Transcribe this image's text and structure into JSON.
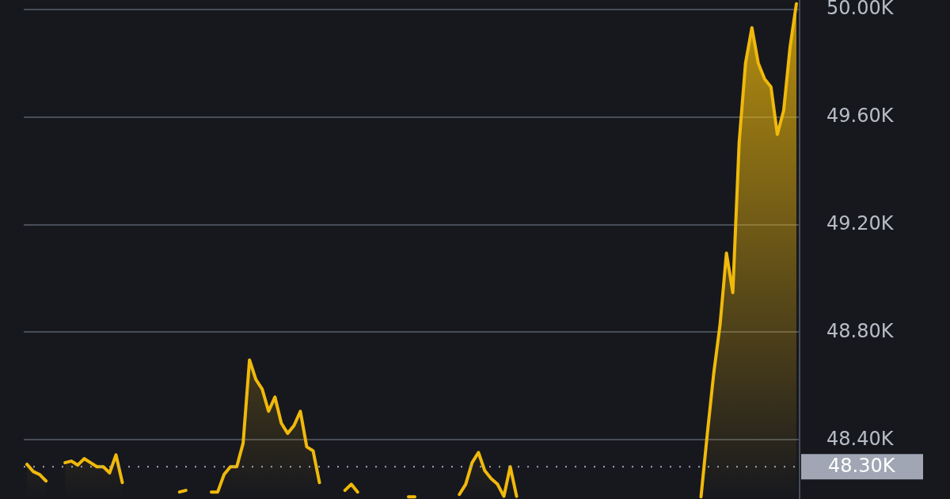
{
  "chart_data": {
    "type": "area",
    "categories": [
      null,
      null,
      null,
      null,
      null,
      null,
      null,
      null,
      null,
      null,
      null,
      null,
      null,
      null,
      null,
      null,
      null,
      null,
      null,
      null,
      null,
      null,
      null,
      null,
      null,
      null,
      null,
      null,
      null,
      null,
      null,
      null,
      null,
      null,
      null,
      null,
      null,
      null,
      null,
      null,
      null,
      null,
      null,
      null,
      null,
      null,
      null,
      null,
      null,
      null,
      null,
      null,
      null,
      null,
      null,
      null,
      null,
      null,
      null,
      null,
      null,
      null,
      null,
      null,
      null,
      null,
      null,
      null,
      null,
      null,
      null,
      null,
      null,
      null,
      null,
      null,
      null,
      null,
      null,
      null,
      null,
      null,
      null,
      null,
      null,
      null,
      null,
      null,
      null,
      null,
      null,
      null,
      null,
      null,
      null,
      null,
      null,
      null,
      null,
      null,
      null,
      null,
      null,
      null,
      null,
      null,
      null,
      null,
      null,
      null,
      null,
      null,
      null,
      null,
      null,
      null,
      null,
      null,
      null,
      null,
      null,
      null
    ],
    "series": [
      {
        "color": "#f0b90b",
        "values": [
          48309,
          48282,
          48271,
          48247,
          null,
          null,
          48315,
          48321,
          48306,
          48330,
          48315,
          48300,
          48300,
          48277,
          48344,
          48241,
          null,
          null,
          null,
          null,
          null,
          null,
          null,
          null,
          48206,
          48212,
          null,
          null,
          null,
          48206,
          48206,
          48271,
          48300,
          48300,
          48388,
          48697,
          48624,
          48588,
          48506,
          48559,
          48462,
          48424,
          48453,
          48506,
          48374,
          48359,
          48241,
          null,
          null,
          null,
          48212,
          48235,
          48206,
          null,
          null,
          null,
          null,
          null,
          null,
          null,
          48188,
          48188,
          null,
          null,
          null,
          null,
          null,
          null,
          48197,
          48235,
          48315,
          48353,
          48285,
          48256,
          48235,
          48190,
          48300,
          48190,
          null,
          null,
          null,
          null,
          null,
          null,
          null,
          null,
          null,
          null,
          null,
          null,
          null,
          null,
          null,
          null,
          null,
          null,
          null,
          null,
          null,
          null,
          null,
          null,
          null,
          null,
          null,
          null,
          48188,
          48424,
          48647,
          48829,
          49094,
          48947,
          49506,
          49800,
          49932,
          49800,
          49741,
          49712,
          49535,
          49624,
          49859,
          50021
        ]
      }
    ],
    "ylim": [
      48180,
      50035
    ],
    "yticks": [
      {
        "value": 48400,
        "label": "48.40K"
      },
      {
        "value": 48800,
        "label": "48.80K"
      },
      {
        "value": 49200,
        "label": "49.20K"
      },
      {
        "value": 49600,
        "label": "49.60K"
      },
      {
        "value": 50000,
        "label": "50.00K"
      }
    ],
    "ref_lines": [
      {
        "axis": "y",
        "value": 48300,
        "label": "48.30K",
        "color": "#a0a6b4",
        "line_style": "dotted"
      }
    ],
    "grid": "y",
    "tick_labels": "y",
    "legend": false,
    "marker": "none",
    "line_style": "solid"
  }
}
